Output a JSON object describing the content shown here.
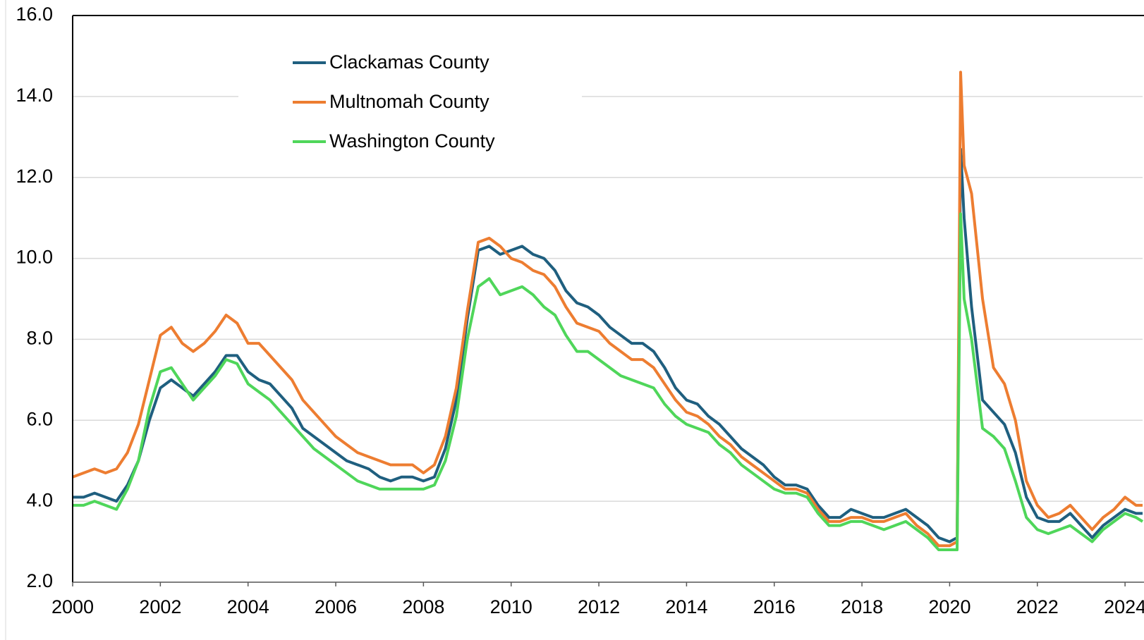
{
  "chart_data": {
    "type": "line",
    "x": [
      2000,
      2000.25,
      2000.5,
      2000.75,
      2001,
      2001.25,
      2001.5,
      2001.75,
      2002,
      2002.25,
      2002.5,
      2002.75,
      2003,
      2003.25,
      2003.5,
      2003.75,
      2004,
      2004.25,
      2004.5,
      2004.75,
      2005,
      2005.25,
      2005.5,
      2005.75,
      2006,
      2006.25,
      2006.5,
      2006.75,
      2007,
      2007.25,
      2007.5,
      2007.75,
      2008,
      2008.25,
      2008.5,
      2008.75,
      2009,
      2009.25,
      2009.5,
      2009.75,
      2010,
      2010.25,
      2010.5,
      2010.75,
      2011,
      2011.25,
      2011.5,
      2011.75,
      2012,
      2012.25,
      2012.5,
      2012.75,
      2013,
      2013.25,
      2013.5,
      2013.75,
      2014,
      2014.25,
      2014.5,
      2014.75,
      2015,
      2015.25,
      2015.5,
      2015.75,
      2016,
      2016.25,
      2016.5,
      2016.75,
      2017,
      2017.25,
      2017.5,
      2017.75,
      2018,
      2018.25,
      2018.5,
      2018.75,
      2019,
      2019.25,
      2019.5,
      2019.75,
      2020,
      2020.17,
      2020.25,
      2020.33,
      2020.5,
      2020.75,
      2021,
      2021.25,
      2021.5,
      2021.75,
      2022,
      2022.25,
      2022.5,
      2022.75,
      2023,
      2023.25,
      2023.5,
      2023.75,
      2024,
      2024.25,
      2024.4
    ],
    "series": [
      {
        "name": "Clackamas County",
        "color": "#1f5f7f",
        "values": [
          4.1,
          4.1,
          4.2,
          4.1,
          4.0,
          4.4,
          5.0,
          6.0,
          6.8,
          7.0,
          6.8,
          6.6,
          6.9,
          7.2,
          7.6,
          7.6,
          7.2,
          7.0,
          6.9,
          6.6,
          6.3,
          5.8,
          5.6,
          5.4,
          5.2,
          5.0,
          4.9,
          4.8,
          4.6,
          4.5,
          4.6,
          4.6,
          4.5,
          4.6,
          5.3,
          6.5,
          8.5,
          10.2,
          10.3,
          10.1,
          10.2,
          10.3,
          10.1,
          10.0,
          9.7,
          9.2,
          8.9,
          8.8,
          8.6,
          8.3,
          8.1,
          7.9,
          7.9,
          7.7,
          7.3,
          6.8,
          6.5,
          6.4,
          6.1,
          5.9,
          5.6,
          5.3,
          5.1,
          4.9,
          4.6,
          4.4,
          4.4,
          4.3,
          3.9,
          3.6,
          3.6,
          3.8,
          3.7,
          3.6,
          3.6,
          3.7,
          3.8,
          3.6,
          3.4,
          3.1,
          3.0,
          3.1,
          12.7,
          11.0,
          8.8,
          6.5,
          6.2,
          5.9,
          5.2,
          4.1,
          3.6,
          3.5,
          3.5,
          3.7,
          3.4,
          3.1,
          3.4,
          3.6,
          3.8,
          3.7,
          3.7
        ]
      },
      {
        "name": "Multnomah County",
        "color": "#ed7d31",
        "values": [
          4.6,
          4.7,
          4.8,
          4.7,
          4.8,
          5.2,
          5.9,
          7.0,
          8.1,
          8.3,
          7.9,
          7.7,
          7.9,
          8.2,
          8.6,
          8.4,
          7.9,
          7.9,
          7.6,
          7.3,
          7.0,
          6.5,
          6.2,
          5.9,
          5.6,
          5.4,
          5.2,
          5.1,
          5.0,
          4.9,
          4.9,
          4.9,
          4.7,
          4.9,
          5.6,
          6.8,
          8.7,
          10.4,
          10.5,
          10.3,
          10.0,
          9.9,
          9.7,
          9.6,
          9.3,
          8.8,
          8.4,
          8.3,
          8.2,
          7.9,
          7.7,
          7.5,
          7.5,
          7.3,
          6.9,
          6.5,
          6.2,
          6.1,
          5.9,
          5.6,
          5.4,
          5.1,
          4.9,
          4.7,
          4.5,
          4.3,
          4.3,
          4.2,
          3.8,
          3.5,
          3.5,
          3.6,
          3.6,
          3.5,
          3.5,
          3.6,
          3.7,
          3.4,
          3.2,
          2.9,
          2.9,
          3.0,
          14.6,
          12.3,
          11.6,
          9.0,
          7.3,
          6.9,
          6.0,
          4.5,
          3.9,
          3.6,
          3.7,
          3.9,
          3.6,
          3.3,
          3.6,
          3.8,
          4.1,
          3.9,
          3.9
        ]
      },
      {
        "name": "Washington County",
        "color": "#4fd65a",
        "values": [
          3.9,
          3.9,
          4.0,
          3.9,
          3.8,
          4.3,
          5.0,
          6.3,
          7.2,
          7.3,
          6.9,
          6.5,
          6.8,
          7.1,
          7.5,
          7.4,
          6.9,
          6.7,
          6.5,
          6.2,
          5.9,
          5.6,
          5.3,
          5.1,
          4.9,
          4.7,
          4.5,
          4.4,
          4.3,
          4.3,
          4.3,
          4.3,
          4.3,
          4.4,
          5.0,
          6.1,
          8.0,
          9.3,
          9.5,
          9.1,
          9.2,
          9.3,
          9.1,
          8.8,
          8.6,
          8.1,
          7.7,
          7.7,
          7.5,
          7.3,
          7.1,
          7.0,
          6.9,
          6.8,
          6.4,
          6.1,
          5.9,
          5.8,
          5.7,
          5.4,
          5.2,
          4.9,
          4.7,
          4.5,
          4.3,
          4.2,
          4.2,
          4.1,
          3.7,
          3.4,
          3.4,
          3.5,
          3.5,
          3.4,
          3.3,
          3.4,
          3.5,
          3.3,
          3.1,
          2.8,
          2.8,
          2.8,
          11.1,
          9.0,
          8.0,
          5.8,
          5.6,
          5.3,
          4.5,
          3.6,
          3.3,
          3.2,
          3.3,
          3.4,
          3.2,
          3.0,
          3.3,
          3.5,
          3.7,
          3.6,
          3.5
        ]
      }
    ],
    "xlim": [
      2000,
      2024.4
    ],
    "xticks": [
      2000,
      2002,
      2004,
      2006,
      2008,
      2010,
      2012,
      2014,
      2016,
      2018,
      2020,
      2022,
      2024
    ],
    "ylim": [
      2,
      16
    ],
    "yticks": [
      {
        "value": 2,
        "label": "2.0"
      },
      {
        "value": 4,
        "label": "4.0"
      },
      {
        "value": 6,
        "label": "6.0"
      },
      {
        "value": 8,
        "label": "8.0"
      },
      {
        "value": 10,
        "label": "10.0"
      },
      {
        "value": 12,
        "label": "12.0"
      },
      {
        "value": 14,
        "label": "14.0"
      },
      {
        "value": 16,
        "label": "16.0"
      }
    ],
    "grid": true,
    "legend": "upper-left"
  }
}
